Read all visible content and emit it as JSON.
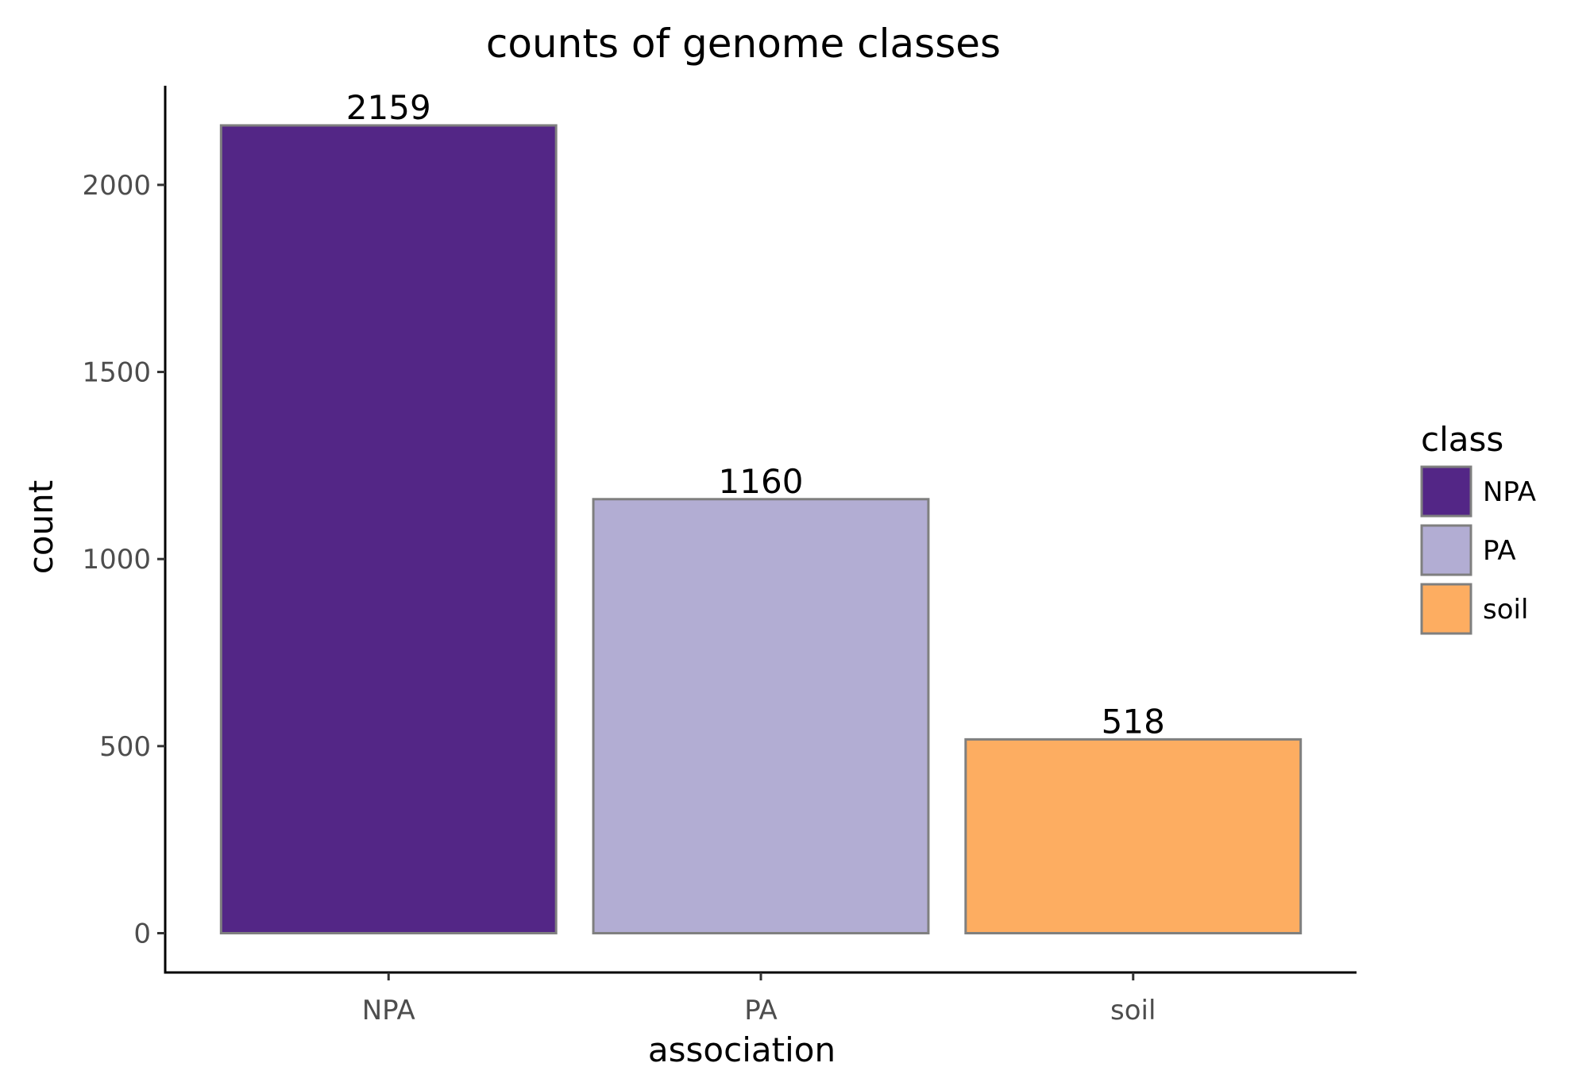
{
  "chart_data": {
    "type": "bar",
    "title": "counts of genome classes",
    "xlabel": "association",
    "ylabel": "count",
    "categories": [
      "NPA",
      "PA",
      "soil"
    ],
    "values": [
      2159,
      1160,
      518
    ],
    "data_labels": [
      "2159",
      "1160",
      "518"
    ],
    "colors": [
      "#532686",
      "#b2add3",
      "#fdad61"
    ],
    "bar_outline_color": "#7f7f7f",
    "ylim": [
      -105,
      2265
    ],
    "yticks": [
      0,
      500,
      1000,
      1500,
      2000
    ],
    "ytick_labels": [
      "0",
      "500",
      "1000",
      "1500",
      "2000"
    ],
    "grid": false,
    "legend": {
      "title": "class",
      "placement": "right",
      "entries": [
        "NPA",
        "PA",
        "soil"
      ]
    }
  }
}
